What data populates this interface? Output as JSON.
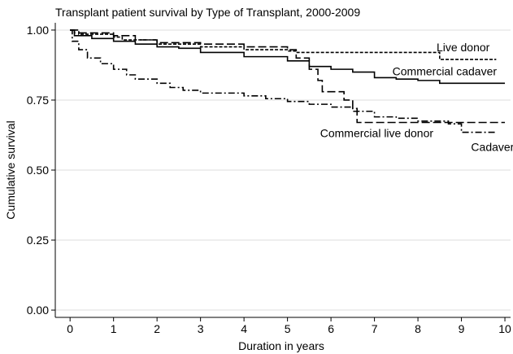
{
  "chart_data": {
    "type": "step",
    "title": "Transplant patient survival by Type of Transplant, 2000-2009",
    "x_label": "Duration in years",
    "y_label": "Cumulative survival",
    "xlim": [
      -0.34,
      10.13
    ],
    "ylim": [
      -0.026,
      1.026
    ],
    "xticks": [
      0,
      1,
      2,
      3,
      4,
      5,
      6,
      7,
      8,
      9,
      10
    ],
    "yticks": [
      {
        "value": 0,
        "label": "0.00"
      },
      {
        "value": 0.25,
        "label": "0.25"
      },
      {
        "value": 0.5,
        "label": "0.50"
      },
      {
        "value": 0.75,
        "label": "0.75"
      },
      {
        "value": 1,
        "label": "1.00"
      }
    ],
    "grid": true,
    "series": [
      {
        "name": "Live donor",
        "color": "#000000",
        "dash": "4,2",
        "x": [
          0,
          0.2,
          1.0,
          1.2,
          2.0,
          3.0,
          4.0,
          5.0,
          5.2,
          8.5,
          9.8
        ],
        "values": [
          1.0,
          0.985,
          0.975,
          0.965,
          0.95,
          0.94,
          0.93,
          0.925,
          0.92,
          0.895,
          0.895
        ]
      },
      {
        "name": "Commercial cadaver",
        "color": "#000000",
        "dash": "none",
        "x": [
          0,
          0.1,
          0.5,
          1,
          1.5,
          2,
          2.5,
          3,
          4,
          5,
          5.5,
          6,
          6.5,
          7,
          7.5,
          8,
          8.5,
          10
        ],
        "values": [
          1.0,
          0.98,
          0.97,
          0.96,
          0.95,
          0.94,
          0.935,
          0.92,
          0.905,
          0.89,
          0.87,
          0.86,
          0.85,
          0.83,
          0.825,
          0.82,
          0.81,
          0.81
        ]
      },
      {
        "name": "Commercial live donor",
        "color": "#000000",
        "dash": "10,4",
        "x": [
          0,
          0.1,
          1,
          1.5,
          2,
          3,
          4,
          5,
          5.2,
          5.5,
          5.7,
          5.8,
          6.3,
          6.5,
          6.6,
          10
        ],
        "values": [
          1.0,
          0.99,
          0.98,
          0.965,
          0.955,
          0.95,
          0.94,
          0.93,
          0.9,
          0.86,
          0.82,
          0.78,
          0.75,
          0.72,
          0.67,
          0.67
        ]
      },
      {
        "name": "Cadaver",
        "color": "#000000",
        "dash": "8,3,2,3",
        "x": [
          0,
          0.05,
          0.2,
          0.4,
          0.7,
          1,
          1.3,
          1.5,
          2,
          2.3,
          2.6,
          3,
          4,
          4.5,
          5,
          5.5,
          6,
          6.5,
          7,
          7.5,
          8,
          8.7,
          9,
          9.8
        ],
        "values": [
          1.0,
          0.96,
          0.93,
          0.9,
          0.88,
          0.86,
          0.84,
          0.825,
          0.81,
          0.795,
          0.785,
          0.775,
          0.765,
          0.755,
          0.745,
          0.735,
          0.725,
          0.71,
          0.69,
          0.685,
          0.675,
          0.665,
          0.635,
          0.635
        ]
      }
    ]
  }
}
